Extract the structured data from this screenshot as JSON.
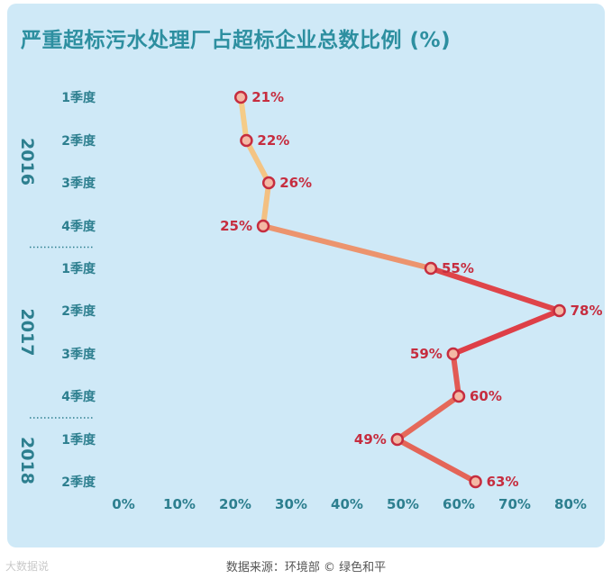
{
  "title": "严重超标污水处理厂占超标企业总数比例 (%)",
  "source": "数据来源：环境部 © 绿色和平",
  "watermark": "大数据说",
  "colors": {
    "background": "#cfe9f7",
    "title": "#2d8fa0",
    "axis_text": "#2d7f8f",
    "label_red": "#c62d3f",
    "line_low": "#f6d08a",
    "line_high": "#d9233a"
  },
  "chart_data": {
    "type": "line",
    "orientation": "horizontal",
    "title": "严重超标污水处理厂占超标企业总数比例 (%)",
    "xlabel": "",
    "ylabel": "",
    "xlim": [
      0,
      80
    ],
    "x_ticks": [
      "0%",
      "10%",
      "20%",
      "30%",
      "40%",
      "50%",
      "60%",
      "70%",
      "80%"
    ],
    "grid": false,
    "year_groups": [
      {
        "year": "2016",
        "quarters": 4
      },
      {
        "year": "2017",
        "quarters": 4
      },
      {
        "year": "2018",
        "quarters": 2
      }
    ],
    "categories": [
      "1季度",
      "2季度",
      "3季度",
      "4季度",
      "1季度",
      "2季度",
      "3季度",
      "4季度",
      "1季度",
      "2季度"
    ],
    "values": [
      21,
      22,
      26,
      25,
      55,
      78,
      59,
      60,
      49,
      63
    ],
    "value_labels": [
      "21%",
      "22%",
      "26%",
      "25%",
      "55%",
      "78%",
      "59%",
      "60%",
      "49%",
      "63%"
    ],
    "label_side": [
      "right",
      "right",
      "right",
      "left",
      "right",
      "right",
      "left",
      "right",
      "left",
      "right"
    ]
  }
}
